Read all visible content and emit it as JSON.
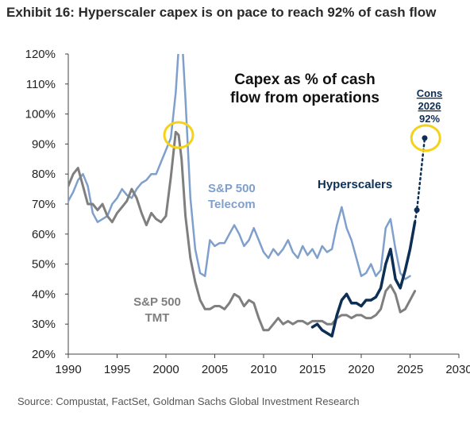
{
  "title": "Exhibit 16: Hyperscaler capex is on pace to reach 92% of cash flow",
  "source": "Source: Compustat, FactSet, Goldman Sachs Global Investment Research",
  "chart_data": {
    "type": "line",
    "title": "Capex as % of cash flow from operations",
    "title_lines": [
      "Capex as % of cash",
      "flow from operations"
    ],
    "xlim": [
      1990,
      2030
    ],
    "ylim": [
      20,
      120
    ],
    "x_ticks": [
      "1990",
      "1995",
      "2000",
      "2005",
      "2010",
      "2015",
      "2020",
      "2025",
      "2030"
    ],
    "y_ticks": [
      "20%",
      "30%",
      "40%",
      "50%",
      "60%",
      "70%",
      "80%",
      "90%",
      "100%",
      "110%",
      "120%"
    ],
    "series": [
      {
        "name": "S&P 500 Telecom",
        "label_lines": [
          "S&P 500",
          "Telecom"
        ],
        "color": "#7f9fcc",
        "points": [
          [
            1990.0,
            71
          ],
          [
            1990.5,
            74
          ],
          [
            1991.0,
            78
          ],
          [
            1991.5,
            80
          ],
          [
            1992.0,
            76
          ],
          [
            1992.5,
            67
          ],
          [
            1993.0,
            64
          ],
          [
            1993.5,
            65
          ],
          [
            1994.0,
            66
          ],
          [
            1994.5,
            70
          ],
          [
            1995.0,
            72
          ],
          [
            1995.5,
            75
          ],
          [
            1996.0,
            73
          ],
          [
            1996.5,
            72
          ],
          [
            1997.0,
            75
          ],
          [
            1997.5,
            77
          ],
          [
            1998.0,
            78
          ],
          [
            1998.5,
            80
          ],
          [
            1999.0,
            80
          ],
          [
            1999.5,
            84
          ],
          [
            2000.0,
            88
          ],
          [
            2000.5,
            92
          ],
          [
            2001.0,
            107
          ],
          [
            2001.3,
            122
          ],
          [
            2001.6,
            128
          ],
          [
            2002.0,
            105
          ],
          [
            2002.5,
            72
          ],
          [
            2003.0,
            55
          ],
          [
            2003.5,
            47
          ],
          [
            2004.0,
            46
          ],
          [
            2004.5,
            58
          ],
          [
            2005.0,
            56
          ],
          [
            2005.5,
            57
          ],
          [
            2006.0,
            57
          ],
          [
            2006.5,
            60
          ],
          [
            2007.0,
            63
          ],
          [
            2007.5,
            60
          ],
          [
            2008.0,
            56
          ],
          [
            2008.5,
            58
          ],
          [
            2009.0,
            62
          ],
          [
            2009.5,
            58
          ],
          [
            2010.0,
            54
          ],
          [
            2010.5,
            52
          ],
          [
            2011.0,
            55
          ],
          [
            2011.5,
            53
          ],
          [
            2012.0,
            55
          ],
          [
            2012.5,
            58
          ],
          [
            2013.0,
            54
          ],
          [
            2013.5,
            52
          ],
          [
            2014.0,
            56
          ],
          [
            2014.5,
            53
          ],
          [
            2015.0,
            55
          ],
          [
            2015.5,
            52
          ],
          [
            2016.0,
            56
          ],
          [
            2016.5,
            54
          ],
          [
            2017.0,
            55
          ],
          [
            2017.5,
            63
          ],
          [
            2018.0,
            69
          ],
          [
            2018.5,
            62
          ],
          [
            2019.0,
            58
          ],
          [
            2019.5,
            52
          ],
          [
            2020.0,
            46
          ],
          [
            2020.5,
            47
          ],
          [
            2021.0,
            50
          ],
          [
            2021.5,
            46
          ],
          [
            2022.0,
            48
          ],
          [
            2022.5,
            62
          ],
          [
            2023.0,
            65
          ],
          [
            2023.5,
            55
          ],
          [
            2024.0,
            47
          ],
          [
            2024.5,
            45
          ],
          [
            2025.0,
            46
          ]
        ]
      },
      {
        "name": "S&P 500 TMT",
        "label_lines": [
          "S&P 500",
          "TMT"
        ],
        "color": "#7f7f7f",
        "points": [
          [
            1990.0,
            76
          ],
          [
            1990.5,
            80
          ],
          [
            1991.0,
            82
          ],
          [
            1991.5,
            76
          ],
          [
            1992.0,
            70
          ],
          [
            1992.5,
            70
          ],
          [
            1993.0,
            68
          ],
          [
            1993.5,
            70
          ],
          [
            1994.0,
            66
          ],
          [
            1994.5,
            64
          ],
          [
            1995.0,
            67
          ],
          [
            1995.5,
            69
          ],
          [
            1996.0,
            71
          ],
          [
            1996.5,
            75
          ],
          [
            1997.0,
            72
          ],
          [
            1997.5,
            67
          ],
          [
            1998.0,
            63
          ],
          [
            1998.5,
            67
          ],
          [
            1999.0,
            65
          ],
          [
            1999.5,
            64
          ],
          [
            2000.0,
            66
          ],
          [
            2000.5,
            79
          ],
          [
            2001.0,
            94
          ],
          [
            2001.3,
            93
          ],
          [
            2001.6,
            85
          ],
          [
            2002.0,
            66
          ],
          [
            2002.5,
            52
          ],
          [
            2003.0,
            44
          ],
          [
            2003.5,
            38
          ],
          [
            2004.0,
            35
          ],
          [
            2004.5,
            35
          ],
          [
            2005.0,
            36
          ],
          [
            2005.5,
            36
          ],
          [
            2006.0,
            35
          ],
          [
            2006.5,
            37
          ],
          [
            2007.0,
            40
          ],
          [
            2007.5,
            39
          ],
          [
            2008.0,
            36
          ],
          [
            2008.5,
            38
          ],
          [
            2009.0,
            37
          ],
          [
            2009.5,
            32
          ],
          [
            2010.0,
            28
          ],
          [
            2010.5,
            28
          ],
          [
            2011.0,
            30
          ],
          [
            2011.5,
            32
          ],
          [
            2012.0,
            30
          ],
          [
            2012.5,
            31
          ],
          [
            2013.0,
            30
          ],
          [
            2013.5,
            31
          ],
          [
            2014.0,
            31
          ],
          [
            2014.5,
            30
          ],
          [
            2015.0,
            31
          ],
          [
            2015.5,
            31
          ],
          [
            2016.0,
            31
          ],
          [
            2016.5,
            30
          ],
          [
            2017.0,
            30
          ],
          [
            2017.5,
            32
          ],
          [
            2018.0,
            33
          ],
          [
            2018.5,
            33
          ],
          [
            2019.0,
            32
          ],
          [
            2019.5,
            33
          ],
          [
            2020.0,
            33
          ],
          [
            2020.5,
            32
          ],
          [
            2021.0,
            32
          ],
          [
            2021.5,
            33
          ],
          [
            2022.0,
            35
          ],
          [
            2022.5,
            41
          ],
          [
            2023.0,
            43
          ],
          [
            2023.5,
            40
          ],
          [
            2024.0,
            34
          ],
          [
            2024.5,
            35
          ],
          [
            2025.0,
            38
          ],
          [
            2025.5,
            41
          ]
        ]
      },
      {
        "name": "Hyperscalers",
        "label_lines": [
          "Hyperscalers"
        ],
        "color": "#0d2f56",
        "points": [
          [
            2015.0,
            29
          ],
          [
            2015.5,
            30
          ],
          [
            2016.0,
            28
          ],
          [
            2016.5,
            27
          ],
          [
            2017.0,
            26
          ],
          [
            2017.5,
            33
          ],
          [
            2018.0,
            38
          ],
          [
            2018.5,
            40
          ],
          [
            2019.0,
            37
          ],
          [
            2019.5,
            37
          ],
          [
            2020.0,
            36
          ],
          [
            2020.5,
            38
          ],
          [
            2021.0,
            38
          ],
          [
            2021.5,
            39
          ],
          [
            2022.0,
            42
          ],
          [
            2022.5,
            50
          ],
          [
            2023.0,
            55
          ],
          [
            2023.5,
            45
          ],
          [
            2024.0,
            42
          ],
          [
            2024.5,
            48
          ],
          [
            2025.0,
            55
          ],
          [
            2025.5,
            64
          ]
        ]
      }
    ],
    "projection": {
      "label_lines": [
        "Cons",
        "2026",
        "92%"
      ],
      "color": "#0d2f56",
      "from": [
        2025.5,
        64
      ],
      "points": [
        [
          2025.7,
          68
        ],
        [
          2026.5,
          92
        ]
      ]
    },
    "highlights": [
      {
        "x": 2001.3,
        "y": 93,
        "color": "#f5d21a"
      },
      {
        "x": 2026.6,
        "y": 92,
        "color": "#f5d21a"
      }
    ]
  }
}
